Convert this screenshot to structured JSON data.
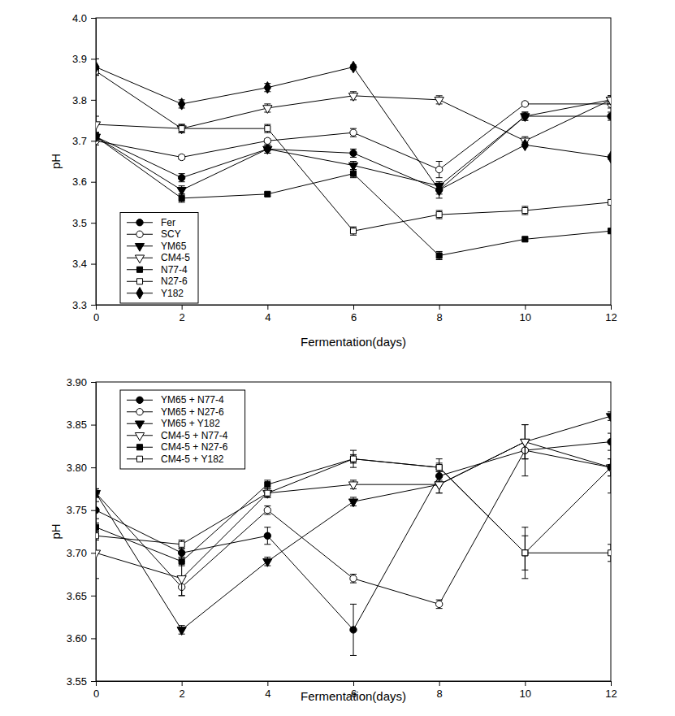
{
  "chart_data": [
    {
      "type": "line",
      "x_label": "Fermentation(days)",
      "y_label": "pH",
      "x": [
        0,
        2,
        4,
        6,
        8,
        10,
        12
      ],
      "xlim": [
        0,
        12
      ],
      "xticks": [
        0,
        2,
        4,
        6,
        8,
        10,
        12
      ],
      "ylim": [
        3.3,
        4.0
      ],
      "yticks": [
        3.3,
        3.4,
        3.5,
        3.6,
        3.7,
        3.8,
        3.9,
        {
          "value": 4.0,
          "label": "4.0"
        }
      ],
      "legend": "lower left",
      "series": [
        {
          "name": "Fer",
          "color": "#000000",
          "marker": "circle",
          "values": [
            3.71,
            3.61,
            3.68,
            3.67,
            3.58,
            3.76,
            3.76
          ],
          "errors": [
            0.01,
            0.01,
            0.01,
            0.01,
            0.01,
            0.01,
            0.01
          ]
        },
        {
          "name": "SCY",
          "color": "#000000",
          "marker": "open-circle",
          "values": [
            3.7,
            3.66,
            3.7,
            3.72,
            3.63,
            3.79,
            3.79
          ],
          "errors": [
            0.01,
            0.005,
            0.005,
            0.01,
            0.02,
            0.005,
            0.01
          ]
        },
        {
          "name": "YM65",
          "color": "#000000",
          "marker": "triangle-down",
          "values": [
            3.71,
            3.58,
            3.68,
            3.64,
            3.59,
            3.76,
            3.8
          ],
          "errors": [
            0.01,
            0.01,
            0.01,
            0.01,
            0.01,
            0.01,
            0.01
          ]
        },
        {
          "name": "CM4-5",
          "color": "#000000",
          "marker": "open-triangle-down",
          "values": [
            3.74,
            3.73,
            3.78,
            3.81,
            3.8,
            3.7,
            3.8
          ],
          "errors": [
            0.02,
            0.01,
            0.01,
            0.01,
            0.01,
            0.01,
            0.01
          ]
        },
        {
          "name": "N77-4",
          "color": "#000000",
          "marker": "square",
          "values": [
            3.71,
            3.56,
            3.57,
            3.62,
            3.42,
            3.46,
            3.48
          ],
          "errors": [
            0.01,
            0.01,
            0.005,
            0.01,
            0.01,
            0.005,
            0.005
          ]
        },
        {
          "name": "N27-6",
          "color": "#000000",
          "marker": "open-square",
          "values": [
            3.87,
            3.73,
            3.73,
            3.48,
            3.52,
            3.53,
            3.55
          ],
          "errors": [
            0.01,
            0.01,
            0.01,
            0.01,
            0.01,
            0.01,
            0.005
          ]
        },
        {
          "name": "Y182",
          "color": "#000000",
          "marker": "diamond",
          "values": [
            3.88,
            3.79,
            3.83,
            3.88,
            3.58,
            3.69,
            3.66
          ],
          "errors": [
            0.02,
            0.01,
            0.01,
            0.005,
            0.02,
            0.005,
            0.005
          ]
        }
      ]
    },
    {
      "type": "line",
      "x_label": "Fermentation(days)",
      "y_label": "pH",
      "x": [
        0,
        2,
        4,
        6,
        8,
        10,
        12
      ],
      "xlim": [
        0,
        12
      ],
      "xticks": [
        0,
        2,
        4,
        6,
        8,
        10,
        12
      ],
      "ylim": [
        3.55,
        3.9
      ],
      "yticks": [
        3.55,
        {
          "value": 3.6,
          "label": "3.60"
        },
        3.65,
        {
          "value": 3.7,
          "label": "3.70"
        },
        3.75,
        {
          "value": 3.8,
          "label": "3.80"
        },
        3.85,
        {
          "value": 3.9,
          "label": "3.90"
        }
      ],
      "legend": "upper left",
      "series": [
        {
          "name": "YM65 + N77-4",
          "color": "#000000",
          "marker": "circle",
          "values": [
            3.75,
            3.7,
            3.72,
            3.61,
            3.79,
            3.82,
            3.83
          ],
          "errors": [
            0.01,
            0.005,
            0.01,
            0.03,
            0.005,
            0.01,
            0.01
          ]
        },
        {
          "name": "YM65 + N27-6",
          "color": "#000000",
          "marker": "open-circle",
          "values": [
            3.77,
            3.66,
            3.75,
            3.67,
            3.64,
            3.82,
            3.8
          ],
          "errors": [
            0.005,
            0.01,
            0.005,
            0.005,
            0.005,
            0.03,
            0.01
          ]
        },
        {
          "name": "YM65 + Y182",
          "color": "#000000",
          "marker": "triangle-down",
          "values": [
            3.77,
            3.61,
            3.69,
            3.76,
            3.78,
            3.83,
            3.86
          ],
          "errors": [
            0.005,
            0.005,
            0.005,
            0.005,
            0.01,
            0.02,
            0.005
          ]
        },
        {
          "name": "CM4-5 + N77-4",
          "color": "#000000",
          "marker": "open-triangle-down",
          "values": [
            3.7,
            3.67,
            3.77,
            3.78,
            3.78,
            3.83,
            3.8
          ],
          "errors": [
            0.03,
            0.02,
            0.005,
            0.005,
            0.01,
            0.02,
            0.03
          ]
        },
        {
          "name": "CM4-5 + N27-6",
          "color": "#000000",
          "marker": "square",
          "values": [
            3.73,
            3.69,
            3.78,
            3.81,
            3.8,
            3.7,
            3.8
          ],
          "errors": [
            0.005,
            0.005,
            0.005,
            0.005,
            0.005,
            0.03,
            0.01
          ]
        },
        {
          "name": "CM4-5 + Y182",
          "color": "#000000",
          "marker": "open-square",
          "values": [
            3.72,
            3.71,
            3.77,
            3.81,
            3.8,
            3.7,
            3.7
          ],
          "errors": [
            0.005,
            0.005,
            0.005,
            0.01,
            0.01,
            0.02,
            0.01
          ]
        }
      ]
    }
  ]
}
